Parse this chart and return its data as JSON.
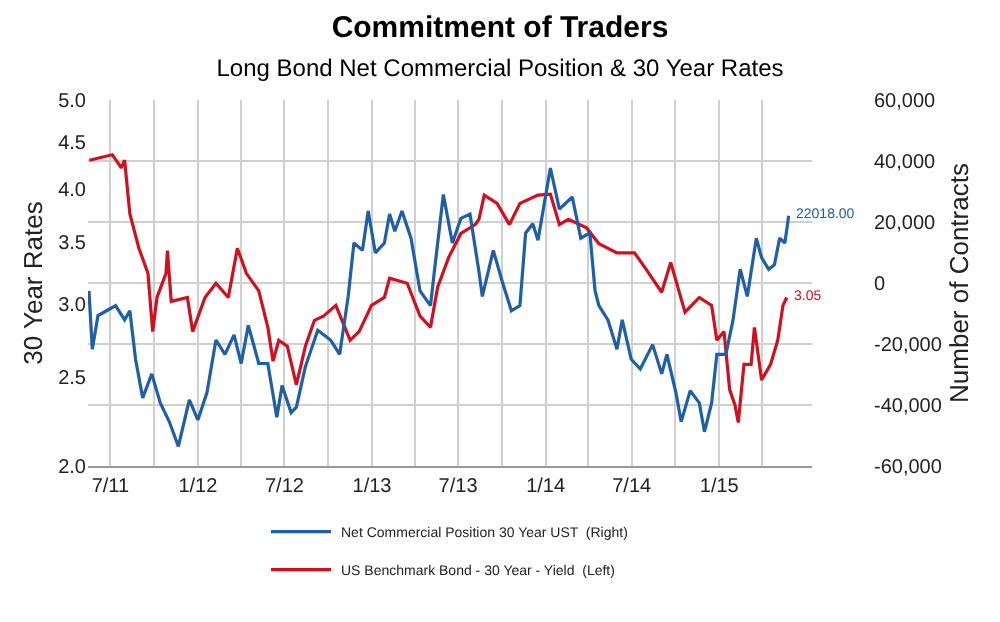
{
  "chart_data": {
    "type": "line",
    "title": "Commitment of Traders",
    "subtitle": "Long Bond Net Commercial Position & 30 Year Rates",
    "ylabel": "30 Year Rates",
    "y2label": "Number of Contracts",
    "series": [
      {
        "name": "Net Commercial Position 30 Year UST  (Right)",
        "color": "#1f5fa6",
        "axis": "y2",
        "x": [
          "2011-05-17",
          "2011-05-24",
          "2011-06-05",
          "2011-06-23",
          "2011-07-12",
          "2011-07-31",
          "2011-08-11",
          "2011-08-23",
          "2011-09-07",
          "2011-09-26",
          "2011-10-14",
          "2011-11-02",
          "2011-11-21",
          "2011-12-14",
          "2012-01-01",
          "2012-01-20",
          "2012-02-08",
          "2012-02-27",
          "2012-03-17",
          "2012-04-01",
          "2012-04-16",
          "2012-05-08",
          "2012-05-27",
          "2012-06-15",
          "2012-06-26",
          "2012-07-15",
          "2012-07-26",
          "2012-08-14",
          "2012-09-09",
          "2012-10-06",
          "2012-10-25",
          "2012-11-12",
          "2012-11-24",
          "2012-12-12",
          "2012-12-24",
          "2013-01-08",
          "2013-01-27",
          "2013-02-07",
          "2013-02-18",
          "2013-03-05",
          "2013-03-24",
          "2013-04-12",
          "2013-05-04",
          "2013-05-12",
          "2013-05-31",
          "2013-06-19",
          "2013-07-07",
          "2013-07-26",
          "2013-08-14",
          "2013-08-21",
          "2013-09-13",
          "2013-10-02",
          "2013-10-21",
          "2013-11-08",
          "2013-11-20",
          "2013-12-05",
          "2013-12-16",
          "2014-01-11",
          "2014-01-30",
          "2014-02-26",
          "2014-03-16",
          "2014-04-04",
          "2014-04-15",
          "2014-04-23",
          "2014-05-12",
          "2014-05-31",
          "2014-06-11",
          "2014-06-30",
          "2014-07-19",
          "2014-08-14",
          "2014-09-02",
          "2014-09-13",
          "2014-10-02",
          "2014-10-13",
          "2014-11-01",
          "2014-11-20",
          "2014-12-01",
          "2014-12-16",
          "2014-12-27",
          "2015-01-15",
          "2015-01-30",
          "2015-02-14",
          "2015-03-01",
          "2015-03-20",
          "2015-03-31",
          "2015-04-15",
          "2015-04-27",
          "2015-05-08",
          "2015-05-19",
          "2015-05-27"
        ],
        "values": [
          -2600,
          -21700,
          -10700,
          -9100,
          -7400,
          -12100,
          -9100,
          -25000,
          -37700,
          -29800,
          -39300,
          -45500,
          -53600,
          -38300,
          -44900,
          -36000,
          -18700,
          -23400,
          -17000,
          -26400,
          -13900,
          -26400,
          -26400,
          -44000,
          -33600,
          -42500,
          -40700,
          -27400,
          -15500,
          -18700,
          -23400,
          -4400,
          13100,
          10700,
          23600,
          9900,
          13100,
          22600,
          17000,
          23600,
          14700,
          -2600,
          -7400,
          3600,
          29000,
          13100,
          21200,
          22600,
          3600,
          -4400,
          10700,
          400,
          -9100,
          -7400,
          16400,
          19400,
          14000,
          37700,
          24200,
          28200,
          14700,
          16400,
          -2600,
          -7400,
          -12100,
          -21700,
          -12100,
          -25000,
          -28200,
          -20200,
          -29800,
          -23400,
          -36000,
          -45500,
          -35300,
          -39300,
          -48800,
          -39300,
          -23400,
          -23400,
          -12100,
          4500,
          -4400,
          14700,
          8300,
          4500,
          6000,
          14700,
          13100,
          22018
        ],
        "value_labels": [
          null,
          null,
          null,
          null,
          null,
          null,
          null,
          null,
          null,
          null,
          null,
          null,
          null,
          null,
          null,
          null,
          null,
          null,
          null,
          null,
          null,
          null,
          null,
          null,
          null,
          null,
          null,
          null,
          null,
          null,
          null,
          null,
          null,
          null,
          null,
          null,
          null,
          null,
          null,
          null,
          null,
          null,
          null,
          null,
          null,
          null,
          null,
          null,
          null,
          null,
          null,
          null,
          null,
          null,
          null,
          null,
          null,
          null,
          null,
          null,
          null,
          null,
          null,
          null,
          null,
          null,
          null,
          null,
          null,
          null,
          null,
          null,
          null,
          null,
          null,
          null,
          null,
          null,
          null,
          null,
          null,
          null,
          null,
          null,
          null,
          null,
          null,
          null,
          null,
          "22018.00"
        ]
      },
      {
        "name": "US Benchmark Bond - 30 Year - Yield  (Left)",
        "color": "#d0101e",
        "axis": "y",
        "x": [
          "2011-05-18",
          "2011-07-05",
          "2011-07-24",
          "2011-07-31",
          "2011-08-11",
          "2011-08-30",
          "2011-09-18",
          "2011-09-28",
          "2011-10-07",
          "2011-10-26",
          "2011-10-29",
          "2011-11-06",
          "2011-12-10",
          "2011-12-21",
          "2012-01-16",
          "2012-02-08",
          "2012-03-05",
          "2012-03-24",
          "2012-04-12",
          "2012-05-08",
          "2012-05-27",
          "2012-06-07",
          "2012-06-19",
          "2012-07-07",
          "2012-07-26",
          "2012-08-14",
          "2012-09-02",
          "2012-09-21",
          "2012-10-17",
          "2012-11-05",
          "2012-11-16",
          "2012-12-05",
          "2012-12-31",
          "2013-01-27",
          "2013-02-07",
          "2013-03-16",
          "2013-04-12",
          "2013-05-04",
          "2013-05-19",
          "2013-06-11",
          "2013-07-07",
          "2013-08-06",
          "2013-08-14",
          "2013-08-25",
          "2013-09-21",
          "2013-10-17",
          "2013-11-08",
          "2013-12-16",
          "2014-01-11",
          "2014-01-30",
          "2014-02-18",
          "2014-03-28",
          "2014-04-23",
          "2014-05-31",
          "2014-07-07",
          "2014-07-30",
          "2014-09-02",
          "2014-09-21",
          "2014-10-21",
          "2014-11-20",
          "2014-12-16",
          "2014-12-27",
          "2015-01-11",
          "2015-01-23",
          "2015-02-03",
          "2015-02-10",
          "2015-02-22",
          "2015-03-09",
          "2015-03-16",
          "2015-03-31",
          "2015-04-19",
          "2015-05-04",
          "2015-05-15",
          "2015-05-23"
        ],
        "values": [
          4.3,
          4.36,
          4.22,
          4.3,
          3.76,
          3.45,
          3.24,
          2.8,
          3.05,
          3.24,
          3.43,
          3.02,
          3.05,
          2.8,
          3.05,
          3.16,
          3.05,
          3.45,
          3.24,
          3.1,
          2.83,
          2.6,
          2.74,
          2.7,
          2.45,
          2.7,
          2.88,
          2.91,
          2.99,
          2.83,
          2.74,
          2.8,
          2.99,
          3.05,
          3.2,
          3.16,
          2.91,
          2.83,
          3.13,
          3.37,
          3.58,
          3.66,
          3.71,
          3.94,
          3.86,
          3.66,
          3.86,
          3.94,
          3.95,
          3.66,
          3.71,
          3.63,
          3.49,
          3.41,
          3.41,
          3.28,
          3.09,
          3.33,
          2.94,
          3.05,
          2.99,
          2.74,
          2.8,
          2.42,
          2.33,
          2.23,
          2.58,
          2.58,
          2.83,
          2.48,
          2.58,
          2.74,
          2.99,
          3.05
        ],
        "value_labels": [
          null,
          null,
          null,
          null,
          null,
          null,
          null,
          null,
          null,
          null,
          null,
          null,
          null,
          null,
          null,
          null,
          null,
          null,
          null,
          null,
          null,
          null,
          null,
          null,
          null,
          null,
          null,
          null,
          null,
          null,
          null,
          null,
          null,
          null,
          null,
          null,
          null,
          null,
          null,
          null,
          null,
          null,
          null,
          null,
          null,
          null,
          null,
          null,
          null,
          null,
          null,
          null,
          null,
          null,
          null,
          null,
          null,
          null,
          null,
          null,
          null,
          null,
          null,
          null,
          null,
          null,
          null,
          null,
          null,
          null,
          null,
          null,
          null,
          "3.05"
        ]
      }
    ],
    "xlim": [
      "2011-05-15",
      "2015-07-15"
    ],
    "xticks": [
      {
        "value": "2011-07-01",
        "label": "7/11"
      },
      {
        "value": "2011-10-01",
        "label": null
      },
      {
        "value": "2012-01-01",
        "label": "1/12"
      },
      {
        "value": "2012-04-01",
        "label": null
      },
      {
        "value": "2012-07-01",
        "label": "7/12"
      },
      {
        "value": "2012-10-01",
        "label": null
      },
      {
        "value": "2013-01-01",
        "label": "1/13"
      },
      {
        "value": "2013-04-01",
        "label": null
      },
      {
        "value": "2013-07-01",
        "label": "7/13"
      },
      {
        "value": "2013-10-01",
        "label": null
      },
      {
        "value": "2014-01-01",
        "label": "1/14"
      },
      {
        "value": "2014-04-01",
        "label": null
      },
      {
        "value": "2014-07-01",
        "label": "7/14"
      },
      {
        "value": "2014-10-01",
        "label": null
      },
      {
        "value": "2015-01-01",
        "label": "1/15"
      },
      {
        "value": "2015-04-01",
        "label": null
      }
    ],
    "log": "y",
    "ylim": [
      2,
      5
    ],
    "yticks": [
      {
        "value": 2,
        "label": "2.0"
      },
      2.5,
      {
        "value": 3,
        "label": "3.0"
      },
      3.5,
      {
        "value": 4,
        "label": "4.0"
      },
      4.5,
      {
        "value": 5,
        "label": "5.0"
      }
    ],
    "y2lim": [
      -60000,
      60000
    ],
    "y2ticks": [
      {
        "value": -60000,
        "label": "-60,000"
      },
      {
        "value": -40000,
        "label": "-40,000"
      },
      {
        "value": -20000,
        "label": "-20,000"
      },
      0,
      {
        "value": 20000,
        "label": "20,000"
      },
      {
        "value": 40000,
        "label": "40,000"
      },
      {
        "value": 60000,
        "label": "60,000"
      }
    ],
    "grid": true,
    "legend": "bottom",
    "marker": "none",
    "line_style": "solid"
  }
}
